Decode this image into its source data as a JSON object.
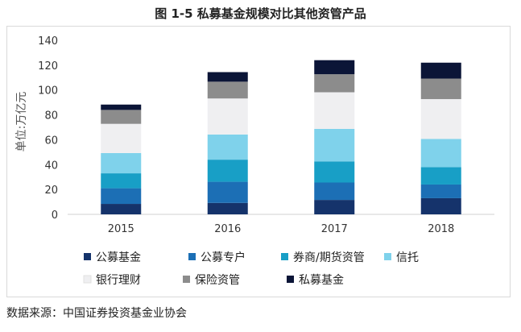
{
  "title": "图 1-5  私募基金规模对比其他资管产品",
  "source": "数据来源：中国证券投资基金业协会",
  "chart_data": {
    "type": "bar",
    "stacked": true,
    "title": "图 1-5  私募基金规模对比其他资管产品",
    "ylabel": "单位:万亿元",
    "ylim": [
      0,
      140
    ],
    "yticks": [
      0,
      20,
      40,
      60,
      80,
      100,
      120,
      140
    ],
    "grid": false,
    "legend_position": "bottom",
    "categories": [
      "2015",
      "2016",
      "2017",
      "2018"
    ],
    "series": [
      {
        "name": "公募基金",
        "color": "#15336b",
        "values": [
          8.4,
          9.2,
          11.6,
          13.0
        ]
      },
      {
        "name": "公募专户",
        "color": "#1c6fb5",
        "values": [
          12.6,
          17.0,
          14.0,
          11.0
        ]
      },
      {
        "name": "券商/期货资管",
        "color": "#189fc6",
        "values": [
          12.0,
          17.8,
          17.0,
          14.0
        ]
      },
      {
        "name": "信托",
        "color": "#7fd2eb",
        "values": [
          16.3,
          20.2,
          26.1,
          22.7
        ]
      },
      {
        "name": "银行理财",
        "color": "#efeff1",
        "values": [
          23.5,
          29.0,
          29.5,
          32.0
        ]
      },
      {
        "name": "保险资管",
        "color": "#8c8c8c",
        "values": [
          11.2,
          13.5,
          14.5,
          16.5
        ]
      },
      {
        "name": "私募基金",
        "color": "#0b1537",
        "values": [
          4.3,
          7.7,
          11.3,
          12.8
        ]
      }
    ]
  }
}
